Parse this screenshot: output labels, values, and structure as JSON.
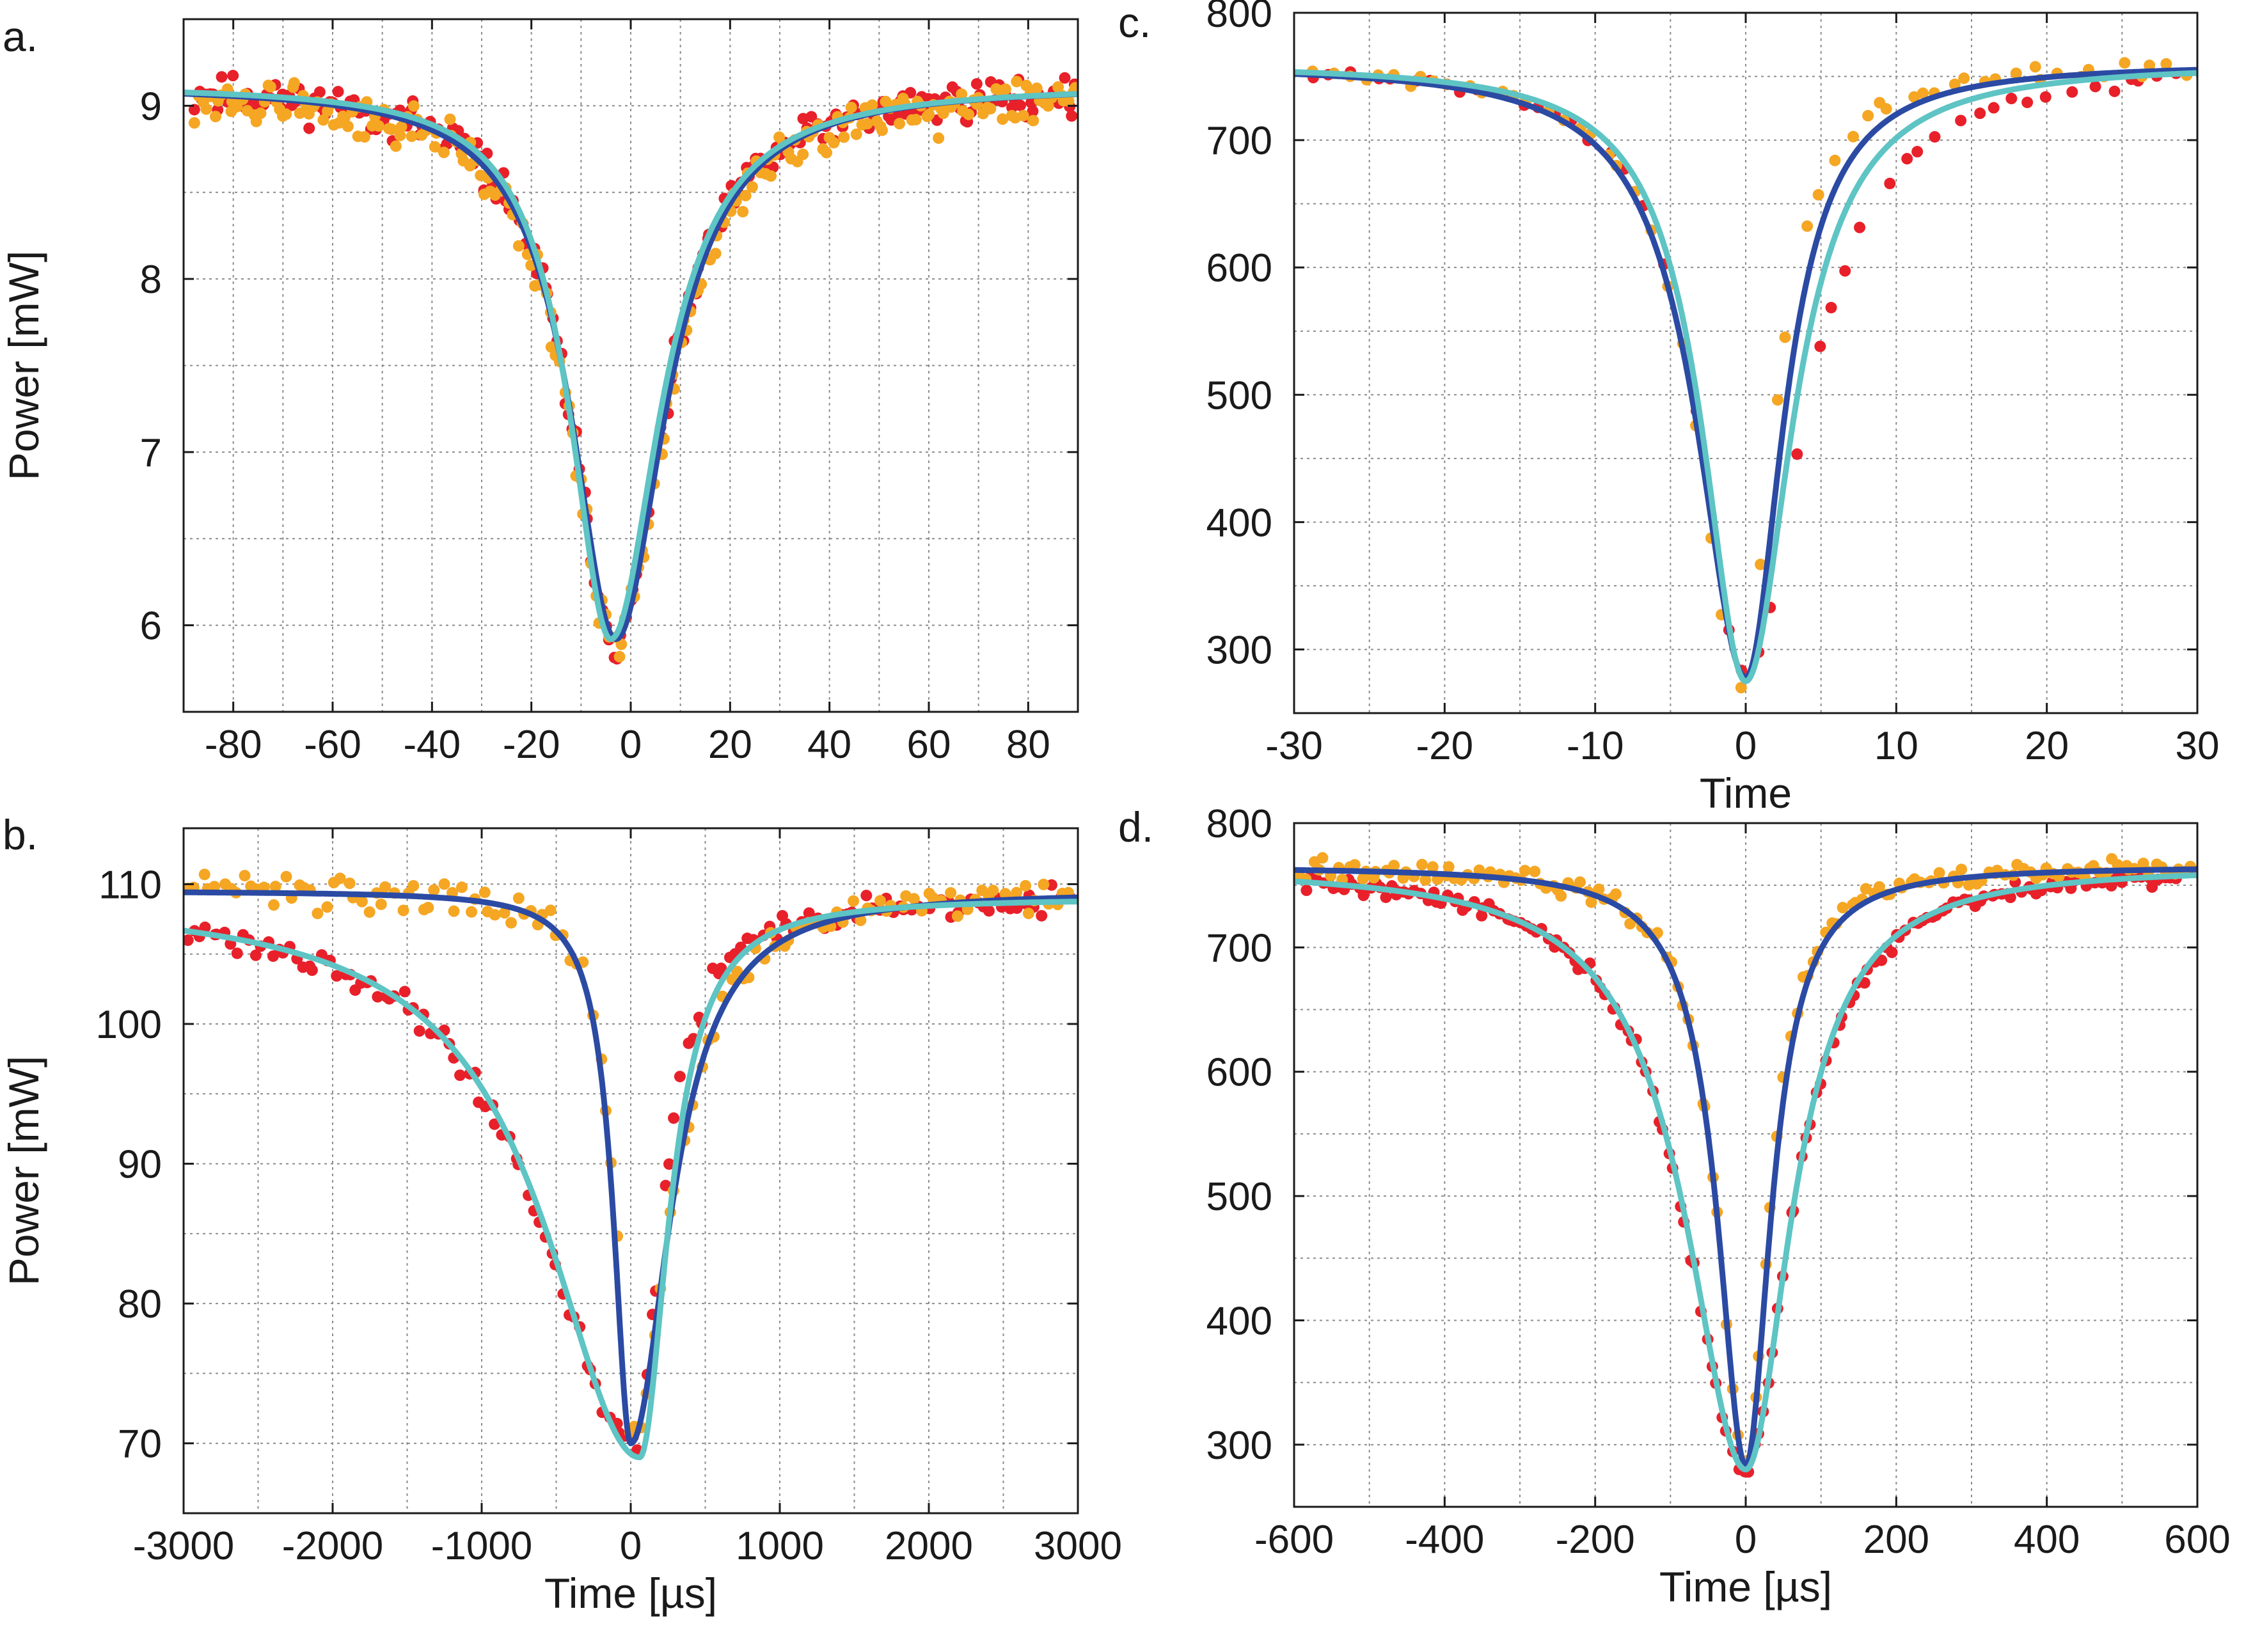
{
  "chart_data": [
    {
      "panel": "a.",
      "type": "scatter",
      "xlabel": "",
      "ylabel": "Power [mW]",
      "xlim": [
        -90,
        90
      ],
      "ylim": [
        5.5,
        9.5
      ],
      "xticks": [
        -80,
        -60,
        -40,
        -20,
        0,
        20,
        40,
        60,
        80
      ],
      "yticks": [
        6,
        7,
        8,
        9
      ],
      "xtick_labels": [
        "-80",
        "-60",
        "-40",
        "-20",
        "0",
        "20",
        "40",
        "60",
        "80"
      ],
      "ytick_labels": [
        "6",
        "7",
        "8",
        "9"
      ],
      "grid": true,
      "series": [
        {
          "name": "data (red)",
          "kind": "points",
          "color": "#e8202a",
          "model": {
            "baseline": 9.12,
            "depth": 3.22,
            "center": -3,
            "wl": 11,
            "wr": 12,
            "noise": 0.07,
            "n": 230,
            "xmin": -88,
            "xmax": 90,
            "seed": 11
          }
        },
        {
          "name": "data (orange)",
          "kind": "points",
          "color": "#f5a623",
          "model": {
            "baseline": 9.08,
            "depth": 3.2,
            "center": -3,
            "wl": 11,
            "wr": 12,
            "noise": 0.08,
            "n": 230,
            "xmin": -88,
            "xmax": 90,
            "seed": 12
          }
        },
        {
          "name": "fit (dark blue)",
          "kind": "line",
          "color": "#2b4aa3",
          "model": {
            "baseline": 9.12,
            "depth": 3.2,
            "center": -3,
            "wl": 11,
            "wr": 12
          }
        },
        {
          "name": "fit (teal)",
          "kind": "line",
          "color": "#5ec4c4",
          "model": {
            "baseline": 9.12,
            "depth": 3.2,
            "center": -4,
            "wl": 10,
            "wr": 12
          }
        }
      ]
    },
    {
      "panel": "b.",
      "type": "scatter",
      "xlabel": "Time [µs]",
      "ylabel": "Power [mW]",
      "xlim": [
        -3000,
        3000
      ],
      "ylim": [
        65,
        114
      ],
      "xticks": [
        -3000,
        -2000,
        -1000,
        0,
        1000,
        2000,
        3000
      ],
      "yticks": [
        70,
        80,
        90,
        100,
        110
      ],
      "xtick_labels": [
        "-3000",
        "-2000",
        "-1000",
        "0",
        "1000",
        "2000",
        "3000"
      ],
      "ytick_labels": [
        "70",
        "80",
        "90",
        "100",
        "110"
      ],
      "grid": true,
      "series": [
        {
          "name": "data (red)",
          "kind": "points",
          "color": "#e8202a",
          "model": {
            "baseline": 109,
            "depth": 39,
            "center": 20,
            "wl": 760,
            "wr": 230,
            "noise": 0.6,
            "n": 150,
            "xmin": -2980,
            "xmax": 2980,
            "seed": 21
          }
        },
        {
          "name": "data (orange)",
          "kind": "points",
          "color": "#f5a623",
          "model": {
            "baseline": 109.6,
            "depth": 39,
            "center": 10,
            "wl": 140,
            "wr": 320,
            "noise": 0.8,
            "n": 130,
            "xmin": -2980,
            "xmax": 2980,
            "seed": 22
          }
        },
        {
          "name": "fit (dark blue)",
          "kind": "line",
          "color": "#2b4aa3",
          "model": {
            "baseline": 109.5,
            "depth": 39.5,
            "center": 0,
            "wl": 140,
            "wr": 320
          }
        },
        {
          "name": "fit (teal)",
          "kind": "line",
          "color": "#5ec4c4",
          "model": {
            "baseline": 109,
            "depth": 40,
            "center": 60,
            "wl": 760,
            "wr": 230
          }
        }
      ]
    },
    {
      "panel": "c.",
      "type": "scatter",
      "xlabel": "Time",
      "ylabel": "",
      "xlim": [
        -30,
        30
      ],
      "ylim": [
        250,
        800
      ],
      "xticks": [
        -30,
        -20,
        -10,
        0,
        10,
        20,
        30
      ],
      "yticks": [
        300,
        400,
        500,
        600,
        700,
        800
      ],
      "xtick_labels": [
        "-30",
        "-20",
        "-10",
        "0",
        "10",
        "20",
        "30"
      ],
      "ytick_labels": [
        "300",
        "400",
        "500",
        "600",
        "700",
        "800"
      ],
      "grid": true,
      "series": [
        {
          "name": "data (red)",
          "kind": "points",
          "color": "#e8202a",
          "model": {
            "baseline": 760,
            "depth": 480,
            "center": 0,
            "wl": 3.8,
            "wr": 4.6,
            "noise": 3,
            "n": 48,
            "xmin": -29,
            "xmax": 29.5,
            "seed": 31
          }
        },
        {
          "name": "data (orange)",
          "kind": "points",
          "color": "#f5a623",
          "model": {
            "baseline": 760,
            "depth": 485,
            "center": -0.3,
            "wl": 3.6,
            "wr": 2.6,
            "noise": 4,
            "n": 58,
            "xmin": -29,
            "xmax": 29.5,
            "seed": 32
          }
        },
        {
          "name": "fit (dark blue)",
          "kind": "line",
          "color": "#2b4aa3",
          "model": {
            "baseline": 760,
            "depth": 482,
            "center": 0,
            "wl": 3.9,
            "wr": 3.0
          }
        },
        {
          "name": "fit (teal)",
          "kind": "line",
          "color": "#5ec4c4",
          "model": {
            "baseline": 760,
            "depth": 485,
            "center": 0,
            "wl": 3.5,
            "wr": 3.7
          }
        }
      ]
    },
    {
      "panel": "d.",
      "type": "scatter",
      "xlabel": "Time [µs]",
      "ylabel": "",
      "xlim": [
        -600,
        600
      ],
      "ylim": [
        250,
        800
      ],
      "xticks": [
        -600,
        -400,
        -200,
        0,
        200,
        400,
        600
      ],
      "yticks": [
        300,
        400,
        500,
        600,
        700,
        800
      ],
      "xtick_labels": [
        "-600",
        "-400",
        "-200",
        "0",
        "200",
        "400",
        "600"
      ],
      "ytick_labels": [
        "300",
        "400",
        "500",
        "600",
        "700",
        "800"
      ],
      "grid": true,
      "series": [
        {
          "name": "data (red)",
          "kind": "points",
          "color": "#e8202a",
          "model": {
            "baseline": 765,
            "depth": 485,
            "center": -2,
            "wl": 95,
            "wr": 75,
            "noise": 4,
            "n": 170,
            "xmin": -595,
            "xmax": 595,
            "seed": 41
          }
        },
        {
          "name": "data (orange)",
          "kind": "points",
          "color": "#f5a623",
          "model": {
            "baseline": 765,
            "depth": 480,
            "center": 0,
            "wl": 45,
            "wr": 38,
            "noise": 5,
            "n": 150,
            "xmin": -595,
            "xmax": 595,
            "seed": 42
          }
        },
        {
          "name": "fit (dark blue)",
          "kind": "line",
          "color": "#2b4aa3",
          "model": {
            "baseline": 765,
            "depth": 482,
            "center": 0,
            "wl": 45,
            "wr": 40
          }
        },
        {
          "name": "fit (teal)",
          "kind": "line",
          "color": "#5ec4c4",
          "model": {
            "baseline": 765,
            "depth": 485,
            "center": 0,
            "wl": 95,
            "wr": 72
          }
        }
      ]
    }
  ]
}
